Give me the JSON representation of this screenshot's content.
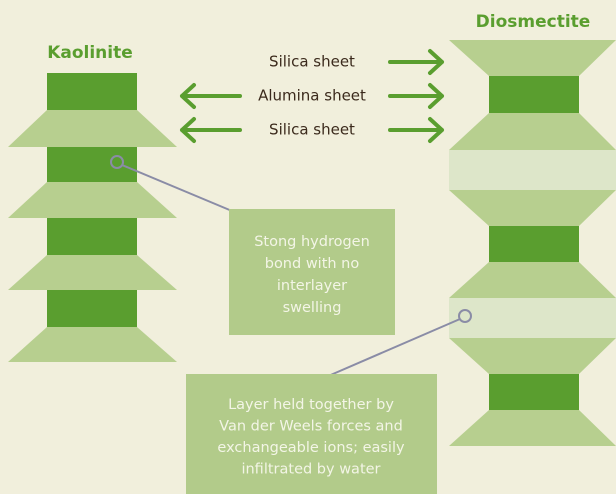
{
  "kaolinite": {
    "title": "Kaolinite"
  },
  "diosmectite": {
    "title": "Diosmectite"
  },
  "sheets": [
    "Silica sheet",
    "Alumina sheet",
    "Silica sheet"
  ],
  "callouts": [
    {
      "lines": [
        "Stong hydrogen",
        "bond with no",
        "interlayer",
        "swelling"
      ]
    },
    {
      "lines": [
        "Layer held together by",
        "Van der Weels forces and",
        "exchangeable ions; easily",
        "infiltrated by water"
      ]
    }
  ]
}
